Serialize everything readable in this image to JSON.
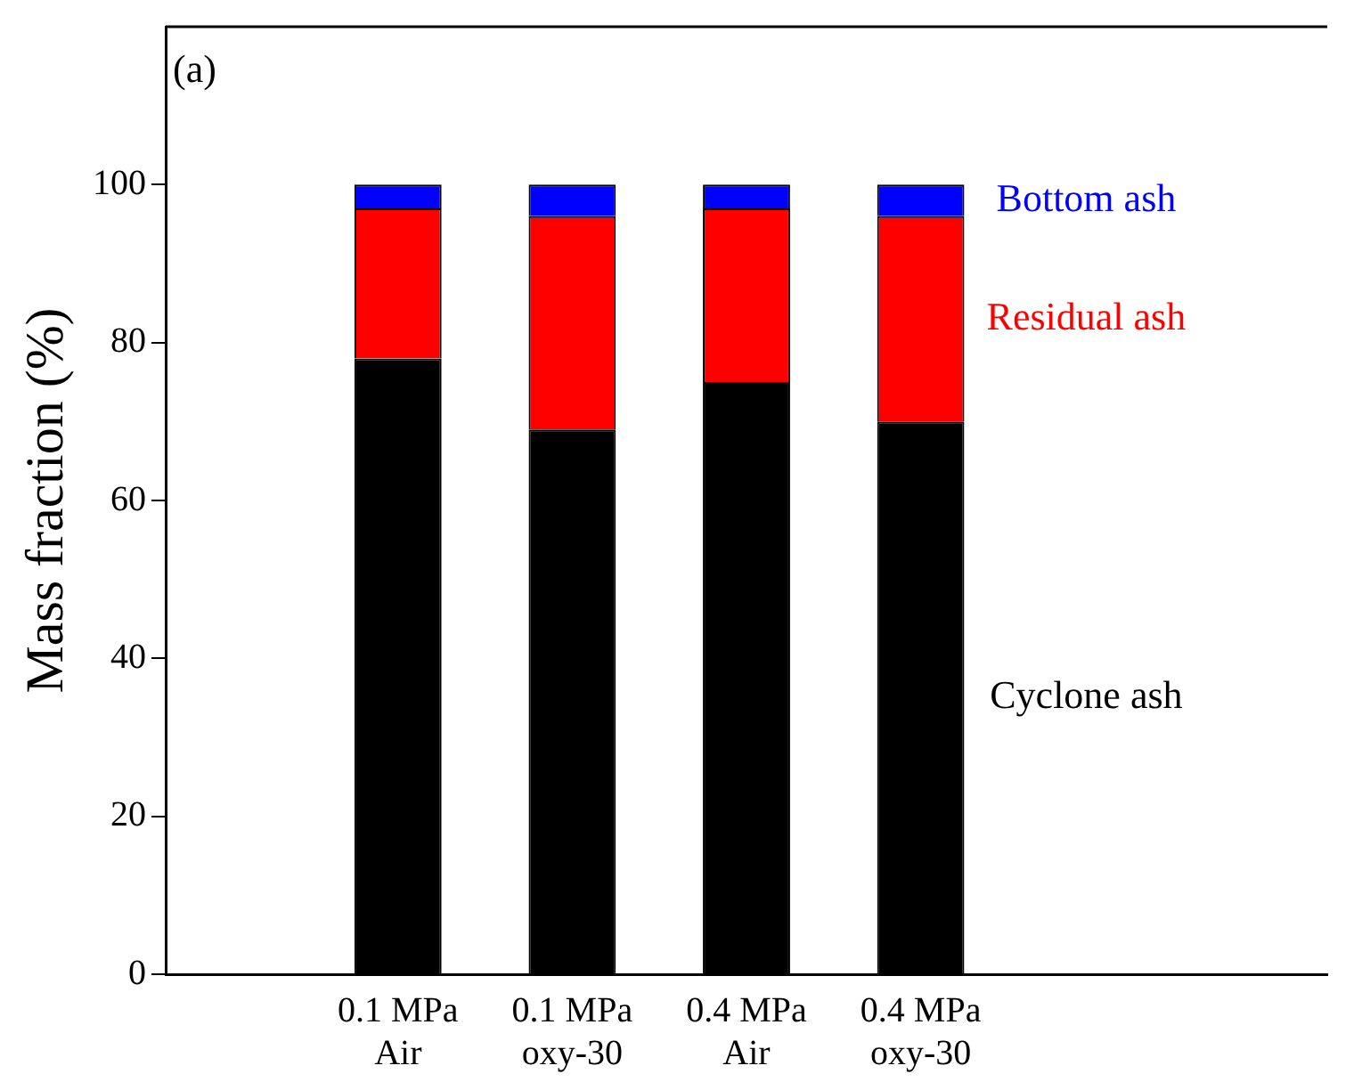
{
  "chart_data": {
    "type": "bar",
    "stacked": true,
    "ylabel": "Mass fraction (%)",
    "categories": [
      "0.1 MPa\nAir",
      "0.1 MPa\noxy-30",
      "0.4 MPa\nAir",
      "0.4 MPa\noxy-30"
    ],
    "series": [
      {
        "name": "Cyclone ash",
        "color": "#000000",
        "values": [
          78,
          69,
          75,
          70
        ]
      },
      {
        "name": "Residual ash",
        "color": "#ff0000",
        "values": [
          19,
          27,
          22,
          26
        ]
      },
      {
        "name": "Bottom ash",
        "color": "#0000ff",
        "values": [
          3,
          4,
          3,
          4
        ]
      }
    ],
    "ylim": [
      0,
      120
    ],
    "yticks": [
      0,
      20,
      40,
      60,
      80,
      100
    ],
    "grid": false,
    "legend": false,
    "annotations": [
      "(a)"
    ]
  }
}
